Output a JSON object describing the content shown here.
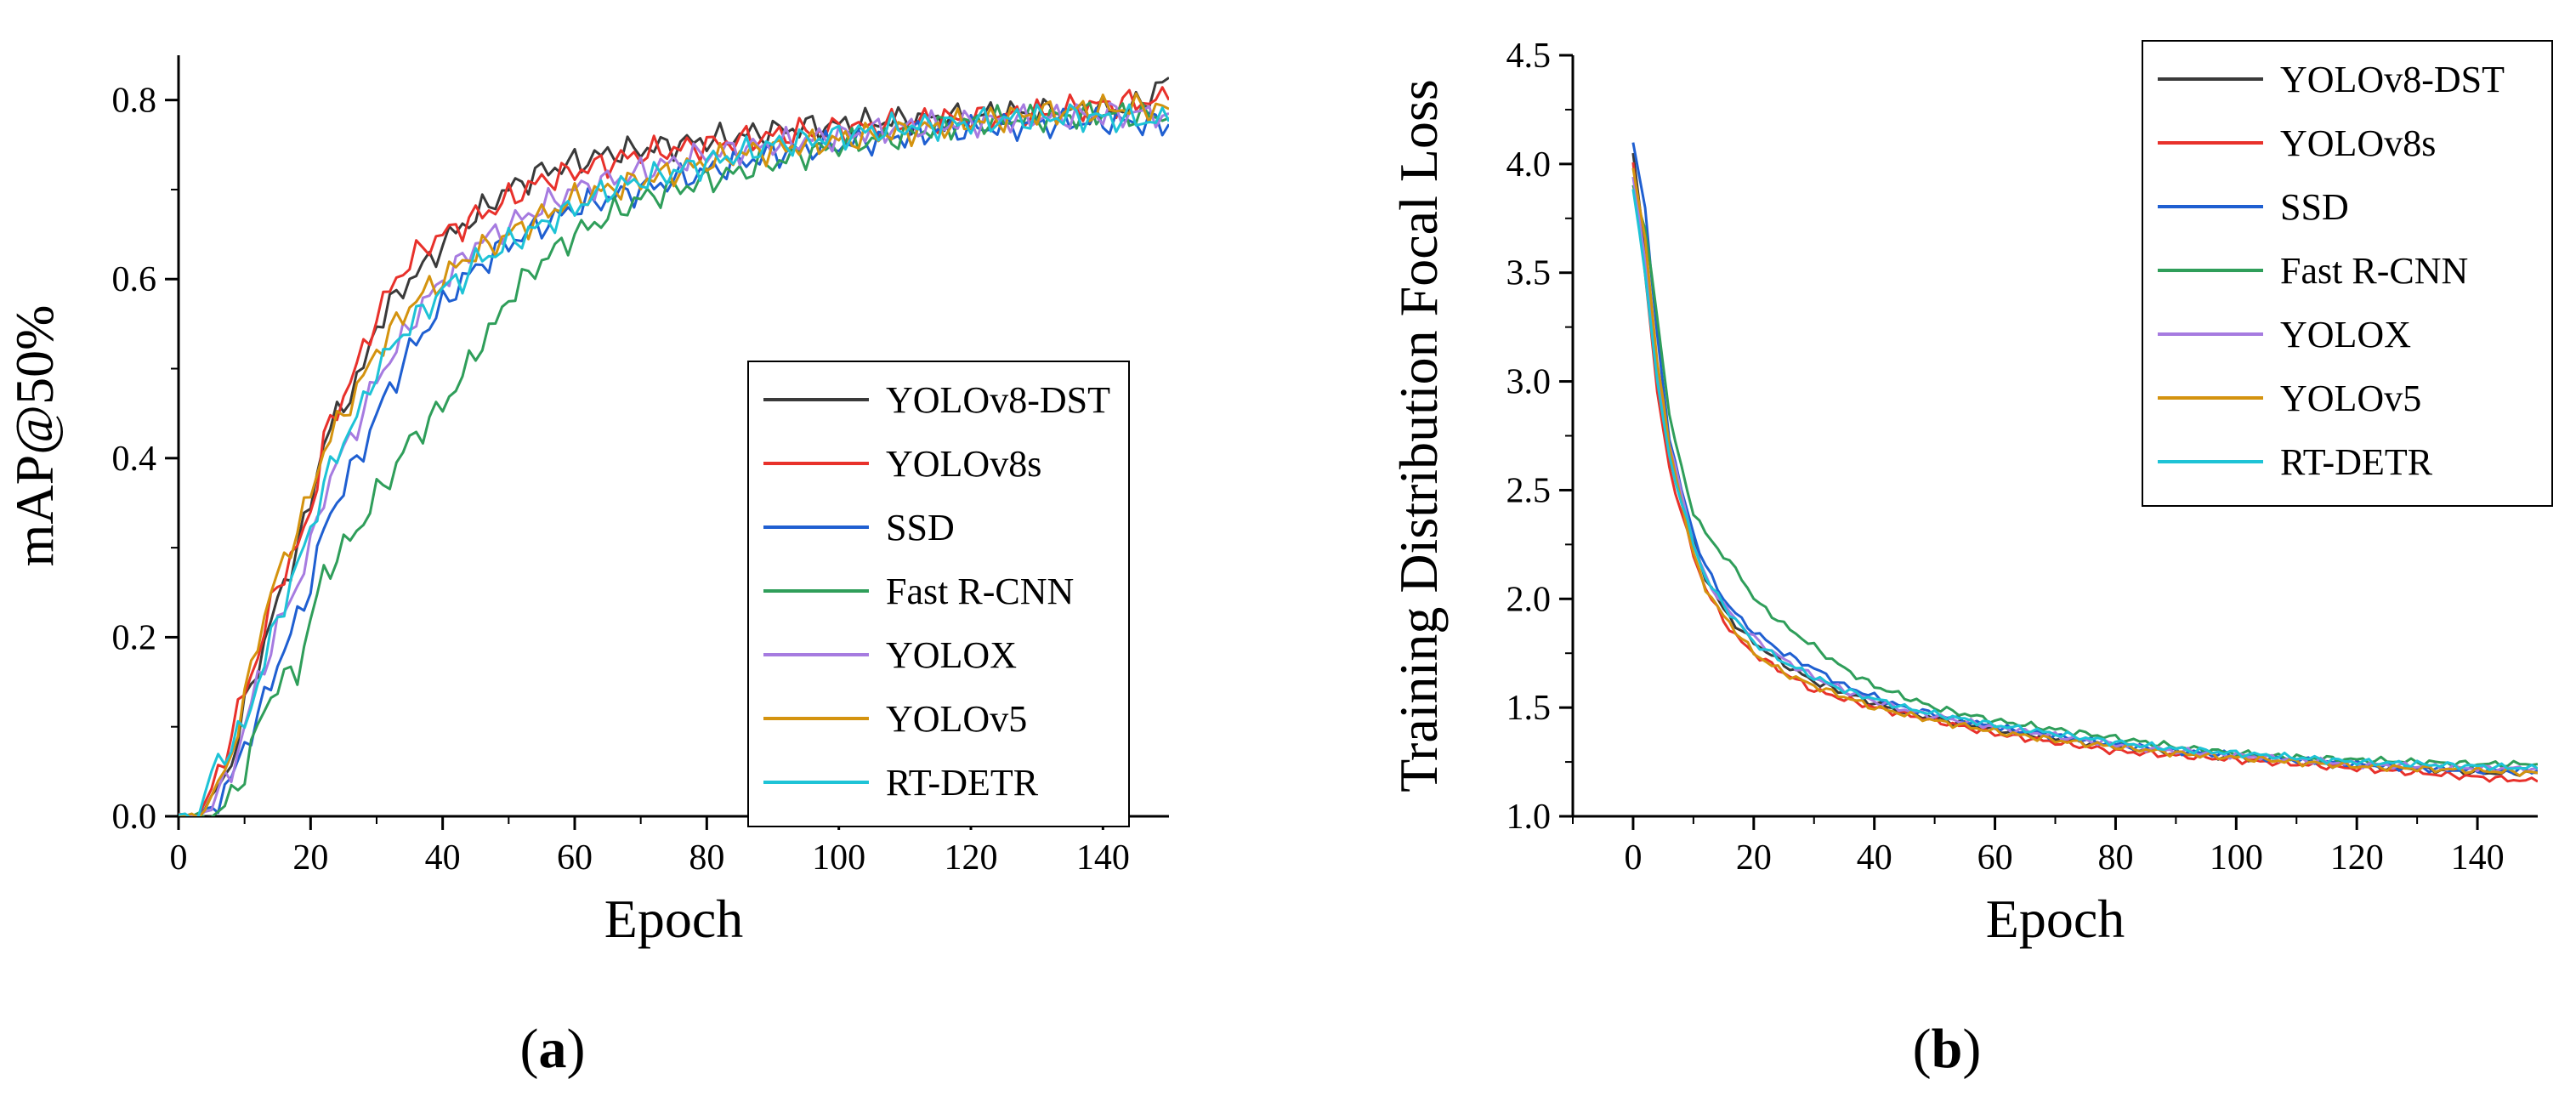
{
  "series_styles": [
    {
      "name": "YOLOv8-DST",
      "color": "#3a3a3a"
    },
    {
      "name": "YOLOv8s",
      "color": "#e8312b"
    },
    {
      "name": "SSD",
      "color": "#1f5fd1"
    },
    {
      "name": "Fast R-CNN",
      "color": "#2f9e5a"
    },
    {
      "name": "YOLOX",
      "color": "#a67be0"
    },
    {
      "name": "YOLOv5",
      "color": "#d4930f"
    },
    {
      "name": "RT-DETR",
      "color": "#1ec3d6"
    }
  ],
  "chart_data": [
    {
      "type": "line",
      "panel_label_prefix": "(",
      "panel_label_letter": "a",
      "panel_label_suffix": ")",
      "xlabel": "Epoch",
      "ylabel": "mAP@50%",
      "xlim": [
        0,
        150
      ],
      "ylim": [
        0,
        0.85
      ],
      "xticks": [
        0,
        20,
        40,
        60,
        80,
        100,
        120,
        140
      ],
      "yticks": [
        0.0,
        0.2,
        0.4,
        0.6,
        0.8
      ],
      "ytick_labels": [
        "0.0",
        "0.2",
        "0.4",
        "0.6",
        "0.8"
      ],
      "legend": [
        "YOLOv8-DST",
        "YOLOv8s",
        "SSD",
        "Fast R-CNN",
        "YOLOX",
        "YOLOv5",
        "RT-DETR"
      ],
      "legend_position": "bottom-right",
      "x": [
        0,
        3,
        5,
        8,
        10,
        12,
        15,
        18,
        20,
        22,
        25,
        28,
        30,
        33,
        35,
        38,
        40,
        43,
        45,
        48,
        50,
        55,
        60,
        65,
        70,
        75,
        80,
        85,
        90,
        95,
        100,
        105,
        110,
        115,
        120,
        125,
        130,
        135,
        140,
        145,
        150
      ],
      "series": [
        {
          "name": "YOLOv8-DST",
          "values": [
            0,
            0,
            0.02,
            0.06,
            0.12,
            0.17,
            0.24,
            0.3,
            0.35,
            0.42,
            0.46,
            0.5,
            0.55,
            0.58,
            0.6,
            0.62,
            0.64,
            0.66,
            0.67,
            0.69,
            0.7,
            0.72,
            0.73,
            0.74,
            0.745,
            0.75,
            0.755,
            0.76,
            0.765,
            0.77,
            0.772,
            0.775,
            0.778,
            0.78,
            0.782,
            0.785,
            0.787,
            0.788,
            0.79,
            0.792,
            0.825
          ]
        },
        {
          "name": "YOLOv8s",
          "values": [
            0,
            0,
            0.03,
            0.09,
            0.14,
            0.18,
            0.26,
            0.3,
            0.34,
            0.42,
            0.47,
            0.52,
            0.56,
            0.6,
            0.62,
            0.64,
            0.65,
            0.66,
            0.67,
            0.68,
            0.69,
            0.71,
            0.72,
            0.73,
            0.74,
            0.745,
            0.75,
            0.755,
            0.76,
            0.765,
            0.768,
            0.77,
            0.775,
            0.778,
            0.78,
            0.782,
            0.785,
            0.79,
            0.795,
            0.798,
            0.8
          ]
        },
        {
          "name": "SSD",
          "values": [
            0,
            0,
            0.01,
            0.04,
            0.08,
            0.11,
            0.17,
            0.22,
            0.26,
            0.32,
            0.37,
            0.41,
            0.45,
            0.49,
            0.52,
            0.55,
            0.57,
            0.6,
            0.61,
            0.63,
            0.64,
            0.66,
            0.68,
            0.69,
            0.7,
            0.71,
            0.72,
            0.73,
            0.74,
            0.745,
            0.75,
            0.755,
            0.76,
            0.765,
            0.768,
            0.77,
            0.772,
            0.775,
            0.776,
            0.775,
            0.773
          ]
        },
        {
          "name": "Fast R-CNN",
          "values": [
            0,
            0,
            0,
            0.02,
            0.05,
            0.1,
            0.15,
            0.16,
            0.22,
            0.27,
            0.3,
            0.33,
            0.36,
            0.39,
            0.42,
            0.44,
            0.46,
            0.49,
            0.52,
            0.55,
            0.58,
            0.62,
            0.65,
            0.67,
            0.69,
            0.7,
            0.71,
            0.72,
            0.73,
            0.74,
            0.75,
            0.755,
            0.76,
            0.77,
            0.775,
            0.778,
            0.78,
            0.782,
            0.785,
            0.783,
            0.78
          ]
        },
        {
          "name": "YOLOX",
          "values": [
            0,
            0,
            0.01,
            0.05,
            0.1,
            0.15,
            0.21,
            0.26,
            0.3,
            0.36,
            0.41,
            0.45,
            0.49,
            0.52,
            0.55,
            0.58,
            0.6,
            0.62,
            0.64,
            0.65,
            0.66,
            0.68,
            0.7,
            0.71,
            0.72,
            0.73,
            0.74,
            0.745,
            0.75,
            0.755,
            0.76,
            0.765,
            0.77,
            0.772,
            0.775,
            0.778,
            0.78,
            0.782,
            0.784,
            0.785,
            0.785
          ]
        },
        {
          "name": "YOLOv5",
          "values": [
            0,
            0,
            0.02,
            0.07,
            0.13,
            0.2,
            0.27,
            0.32,
            0.36,
            0.41,
            0.45,
            0.49,
            0.52,
            0.55,
            0.57,
            0.59,
            0.6,
            0.62,
            0.63,
            0.64,
            0.65,
            0.67,
            0.69,
            0.7,
            0.71,
            0.72,
            0.73,
            0.74,
            0.745,
            0.75,
            0.755,
            0.76,
            0.765,
            0.77,
            0.775,
            0.78,
            0.785,
            0.788,
            0.79,
            0.792,
            0.79
          ]
        },
        {
          "name": "RT-DETR",
          "values": [
            0,
            0,
            0.05,
            0.08,
            0.1,
            0.15,
            0.22,
            0.28,
            0.32,
            0.37,
            0.42,
            0.46,
            0.5,
            0.53,
            0.55,
            0.57,
            0.59,
            0.6,
            0.62,
            0.63,
            0.64,
            0.66,
            0.68,
            0.7,
            0.71,
            0.72,
            0.73,
            0.74,
            0.75,
            0.755,
            0.76,
            0.765,
            0.77,
            0.772,
            0.775,
            0.778,
            0.78,
            0.782,
            0.78,
            0.778,
            0.776
          ]
        }
      ]
    },
    {
      "type": "line",
      "panel_label_prefix": "(",
      "panel_label_letter": "b",
      "panel_label_suffix": ")",
      "xlabel": "Epoch",
      "ylabel": "Training Distribution Focal Loss",
      "xlim": [
        -10,
        150
      ],
      "ylim": [
        1.0,
        4.5
      ],
      "xticks": [
        0,
        20,
        40,
        60,
        80,
        100,
        120,
        140
      ],
      "yticks": [
        1.0,
        1.5,
        2.0,
        2.5,
        3.0,
        3.5,
        4.0,
        4.5
      ],
      "ytick_labels": [
        "1.0",
        "1.5",
        "2.0",
        "2.5",
        "3.0",
        "3.5",
        "4.0",
        "4.5"
      ],
      "legend": [
        "YOLOv8-DST",
        "YOLOv8s",
        "SSD",
        "Fast R-CNN",
        "YOLOX",
        "YOLOv5",
        "RT-DETR"
      ],
      "legend_position": "top-right",
      "x": [
        0,
        2,
        4,
        6,
        8,
        10,
        12,
        15,
        18,
        20,
        25,
        30,
        35,
        40,
        45,
        50,
        60,
        70,
        80,
        90,
        100,
        110,
        120,
        130,
        140,
        150
      ],
      "series": [
        {
          "name": "YOLOv8-DST",
          "values": [
            4.05,
            3.6,
            3.0,
            2.65,
            2.45,
            2.25,
            2.1,
            1.95,
            1.85,
            1.8,
            1.7,
            1.62,
            1.57,
            1.52,
            1.48,
            1.45,
            1.4,
            1.36,
            1.32,
            1.29,
            1.27,
            1.25,
            1.23,
            1.22,
            1.2,
            1.2
          ]
        },
        {
          "name": "YOLOv8s",
          "values": [
            4.0,
            3.5,
            2.95,
            2.6,
            2.4,
            2.2,
            2.05,
            1.9,
            1.8,
            1.75,
            1.66,
            1.58,
            1.54,
            1.5,
            1.47,
            1.44,
            1.38,
            1.34,
            1.3,
            1.28,
            1.26,
            1.24,
            1.22,
            1.2,
            1.18,
            1.16
          ]
        },
        {
          "name": "SSD",
          "values": [
            4.1,
            3.8,
            3.2,
            2.75,
            2.5,
            2.3,
            2.15,
            2.0,
            1.9,
            1.85,
            1.75,
            1.68,
            1.6,
            1.55,
            1.5,
            1.47,
            1.41,
            1.37,
            1.33,
            1.3,
            1.28,
            1.26,
            1.24,
            1.22,
            1.21,
            1.21
          ]
        },
        {
          "name": "Fast R-CNN",
          "values": [
            3.9,
            3.7,
            3.3,
            2.85,
            2.6,
            2.4,
            2.3,
            2.2,
            2.1,
            2.0,
            1.88,
            1.78,
            1.68,
            1.6,
            1.55,
            1.5,
            1.44,
            1.4,
            1.36,
            1.32,
            1.29,
            1.27,
            1.26,
            1.25,
            1.24,
            1.24
          ]
        },
        {
          "name": "YOLOX",
          "values": [
            3.95,
            3.55,
            3.05,
            2.7,
            2.5,
            2.25,
            2.1,
            1.97,
            1.88,
            1.82,
            1.72,
            1.64,
            1.58,
            1.53,
            1.49,
            1.46,
            1.41,
            1.37,
            1.33,
            1.3,
            1.28,
            1.26,
            1.24,
            1.23,
            1.22,
            1.22
          ]
        },
        {
          "name": "YOLOv5",
          "values": [
            3.98,
            3.65,
            3.1,
            2.7,
            2.45,
            2.2,
            2.05,
            1.92,
            1.82,
            1.75,
            1.66,
            1.6,
            1.55,
            1.5,
            1.47,
            1.44,
            1.39,
            1.35,
            1.32,
            1.29,
            1.27,
            1.25,
            1.23,
            1.22,
            1.21,
            1.2
          ]
        },
        {
          "name": "RT-DETR",
          "values": [
            3.88,
            3.5,
            3.0,
            2.65,
            2.45,
            2.25,
            2.1,
            1.97,
            1.87,
            1.8,
            1.71,
            1.64,
            1.58,
            1.54,
            1.5,
            1.47,
            1.42,
            1.38,
            1.34,
            1.31,
            1.29,
            1.27,
            1.25,
            1.24,
            1.23,
            1.22
          ]
        }
      ]
    }
  ]
}
